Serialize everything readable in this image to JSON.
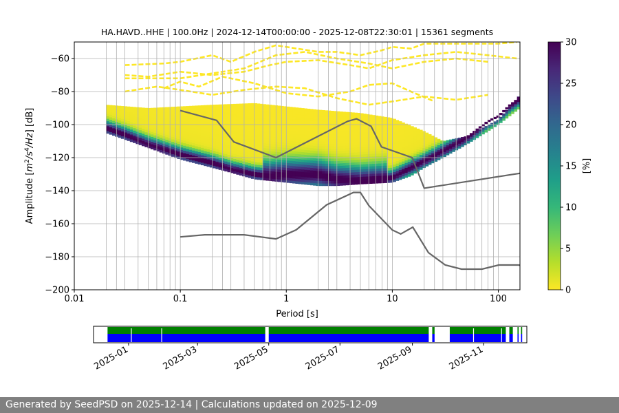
{
  "chart_data": [
    {
      "type": "heatmap",
      "title": "HA.HAVD..HHE | 100.0Hz | 2024-12-14T00:00:00 - 2025-12-08T22:30:01 | 15361 segments",
      "xlabel": "Period [s]",
      "ylabel_parts": [
        "Amplitude [",
        "m",
        "2",
        "/",
        "s",
        "4",
        "/",
        "Hz",
        "] [dB]"
      ],
      "x_scale": "log",
      "xlim": [
        0.01,
        160
      ],
      "ylim": [
        -200,
        -50
      ],
      "grid": true,
      "x_ticks": [
        {
          "value": 0.01,
          "label": "0.01"
        },
        {
          "value": 0.1,
          "label": "0.1"
        },
        {
          "value": 1,
          "label": "1"
        },
        {
          "value": 10,
          "label": "10"
        },
        {
          "value": 100,
          "label": "100"
        }
      ],
      "y_ticks": [
        {
          "value": -60,
          "label": "−60"
        },
        {
          "value": -80,
          "label": "−80"
        },
        {
          "value": -100,
          "label": "−100"
        },
        {
          "value": -120,
          "label": "−120"
        },
        {
          "value": -140,
          "label": "−140"
        },
        {
          "value": -160,
          "label": "−160"
        },
        {
          "value": -180,
          "label": "−180"
        },
        {
          "value": -200,
          "label": "−200"
        }
      ],
      "period_gridlines": [
        0.02,
        0.025,
        0.03,
        0.04,
        0.05,
        0.06,
        0.07,
        0.08,
        0.09,
        0.1,
        0.2,
        0.25,
        0.3,
        0.4,
        0.5,
        0.6,
        0.7,
        0.8,
        0.9,
        1,
        2,
        2.5,
        3,
        4,
        5,
        6,
        7,
        8,
        9,
        10,
        20,
        25,
        30,
        40,
        50,
        60,
        70,
        80,
        90,
        100
      ],
      "mode_curve": [
        [
          0.02,
          -102
        ],
        [
          0.03,
          -106
        ],
        [
          0.05,
          -112
        ],
        [
          0.1,
          -118
        ],
        [
          0.2,
          -123
        ],
        [
          0.3,
          -127
        ],
        [
          0.5,
          -130
        ],
        [
          0.7,
          -131
        ],
        [
          1,
          -130
        ],
        [
          2,
          -130
        ],
        [
          3,
          -133
        ],
        [
          5,
          -134
        ],
        [
          8,
          -133
        ],
        [
          10,
          -132
        ],
        [
          15,
          -126
        ],
        [
          20,
          -122
        ],
        [
          30,
          -116
        ],
        [
          50,
          -108
        ],
        [
          80,
          -98
        ],
        [
          100,
          -95
        ],
        [
          130,
          -88
        ],
        [
          160,
          -84
        ]
      ],
      "density_band": {
        "lower": [
          [
            0.02,
            -105
          ],
          [
            0.05,
            -114
          ],
          [
            0.1,
            -121
          ],
          [
            0.2,
            -126
          ],
          [
            0.3,
            -129
          ],
          [
            0.5,
            -133
          ],
          [
            1,
            -135
          ],
          [
            2,
            -137
          ],
          [
            3,
            -137
          ],
          [
            5,
            -136
          ],
          [
            10,
            -135
          ],
          [
            15,
            -131
          ],
          [
            20,
            -126
          ],
          [
            30,
            -120
          ],
          [
            50,
            -112
          ],
          [
            100,
            -100
          ],
          [
            160,
            -90
          ]
        ],
        "upper": [
          [
            0.02,
            -88
          ],
          [
            0.05,
            -90
          ],
          [
            0.1,
            -89
          ],
          [
            0.2,
            -88
          ],
          [
            0.5,
            -87
          ],
          [
            1,
            -89
          ],
          [
            2,
            -91
          ],
          [
            5,
            -93
          ],
          [
            10,
            -96
          ],
          [
            20,
            -104
          ],
          [
            30,
            -110
          ],
          [
            50,
            -107
          ],
          [
            100,
            -97
          ],
          [
            160,
            -82
          ]
        ]
      },
      "outlier_traces": [
        [
          [
            0.03,
            -64
          ],
          [
            0.07,
            -63
          ],
          [
            0.1,
            -62
          ],
          [
            0.2,
            -58
          ],
          [
            0.3,
            -62
          ],
          [
            0.5,
            -56
          ],
          [
            0.8,
            -52
          ],
          [
            1,
            -53
          ],
          [
            2,
            -56
          ],
          [
            3,
            -56
          ],
          [
            5,
            -58
          ],
          [
            8,
            -55
          ],
          [
            10,
            -53
          ],
          [
            15,
            -54
          ],
          [
            20,
            -51
          ],
          [
            40,
            -51
          ],
          [
            100,
            -51
          ],
          [
            150,
            -50
          ]
        ],
        [
          [
            0.03,
            -70
          ],
          [
            0.05,
            -71
          ],
          [
            0.1,
            -68
          ],
          [
            0.2,
            -70
          ],
          [
            0.4,
            -68
          ],
          [
            0.7,
            -64
          ],
          [
            1,
            -62
          ],
          [
            2,
            -61
          ],
          [
            4,
            -64
          ],
          [
            6,
            -66
          ],
          [
            10,
            -61
          ],
          [
            20,
            -58
          ],
          [
            40,
            -56
          ],
          [
            80,
            -58
          ],
          [
            150,
            -60
          ]
        ],
        [
          [
            0.03,
            -72
          ],
          [
            0.05,
            -72
          ],
          [
            0.1,
            -72
          ],
          [
            0.2,
            -69
          ],
          [
            0.4,
            -66
          ],
          [
            0.8,
            -58
          ],
          [
            1.5,
            -56
          ],
          [
            3,
            -60
          ],
          [
            6,
            -63
          ],
          [
            10,
            -66
          ],
          [
            20,
            -62
          ],
          [
            40,
            -60
          ],
          [
            80,
            -62
          ]
        ],
        [
          [
            0.07,
            -78
          ],
          [
            0.1,
            -74
          ],
          [
            0.15,
            -77
          ],
          [
            0.25,
            -71
          ],
          [
            0.5,
            -75
          ],
          [
            1,
            -81
          ],
          [
            2,
            -83
          ],
          [
            4,
            -80
          ],
          [
            6,
            -76
          ],
          [
            10,
            -75
          ],
          [
            15,
            -80
          ],
          [
            25,
            -86
          ]
        ],
        [
          [
            0.03,
            -80
          ],
          [
            0.06,
            -77
          ],
          [
            0.1,
            -79
          ],
          [
            0.2,
            -82
          ],
          [
            0.4,
            -79
          ],
          [
            0.8,
            -77
          ],
          [
            1.5,
            -78
          ],
          [
            3,
            -84
          ],
          [
            6,
            -88
          ],
          [
            10,
            -86
          ],
          [
            20,
            -83
          ],
          [
            40,
            -85
          ],
          [
            80,
            -82
          ]
        ]
      ],
      "nhnm": [
        [
          0.1,
          -91.5
        ],
        [
          0.22,
          -97.4
        ],
        [
          0.32,
          -110.5
        ],
        [
          0.8,
          -120
        ],
        [
          3.8,
          -98
        ],
        [
          4.6,
          -96.5
        ],
        [
          6.3,
          -101
        ],
        [
          7.9,
          -113.5
        ],
        [
          15.4,
          -120
        ],
        [
          20,
          -138.5
        ],
        [
          354.8,
          -126
        ]
      ],
      "nlnm": [
        [
          0.1,
          -168
        ],
        [
          0.17,
          -166.7
        ],
        [
          0.4,
          -166.7
        ],
        [
          0.8,
          -169.2
        ],
        [
          1.24,
          -163.7
        ],
        [
          2.4,
          -148.6
        ],
        [
          4.3,
          -141.1
        ],
        [
          5.0,
          -141.1
        ],
        [
          6.0,
          -149.0
        ],
        [
          10.0,
          -163.8
        ],
        [
          12.0,
          -166.2
        ],
        [
          15.6,
          -162.1
        ],
        [
          21.9,
          -177.5
        ],
        [
          31.6,
          -185.0
        ],
        [
          45.0,
          -187.5
        ],
        [
          70.0,
          -187.5
        ],
        [
          101.0,
          -185.0
        ],
        [
          154.0,
          -185.0
        ],
        [
          328.0,
          -187.5
        ]
      ],
      "colorbar": {
        "label": "[%]",
        "vmin": 0,
        "vmax": 30,
        "ticks": [
          {
            "value": 0,
            "label": "0"
          },
          {
            "value": 5,
            "label": "5"
          },
          {
            "value": 10,
            "label": "10"
          },
          {
            "value": 15,
            "label": "15"
          },
          {
            "value": 20,
            "label": "20"
          },
          {
            "value": 25,
            "label": "25"
          },
          {
            "value": 30,
            "label": "30"
          }
        ],
        "colormap": [
          "#fde725",
          "#b5de2b",
          "#6ece58",
          "#35b779",
          "#1f9e89",
          "#26828e",
          "#31688e",
          "#3e4989",
          "#482878",
          "#440154"
        ]
      }
    },
    {
      "type": "timeline",
      "tick_labels": [
        {
          "date": "2025-01-01",
          "label": "2025-01"
        },
        {
          "date": "2025-03-01",
          "label": "2025-03"
        },
        {
          "date": "2025-05-01",
          "label": "2025-05"
        },
        {
          "date": "2025-07-01",
          "label": "2025-07"
        },
        {
          "date": "2025-09-01",
          "label": "2025-09"
        },
        {
          "date": "2025-11-01",
          "label": "2025-11"
        }
      ],
      "xlim": [
        "2024-12-02",
        "2025-12-08"
      ],
      "data_coverage": [
        [
          "2024-12-14",
          "2025-04-28"
        ],
        [
          "2025-05-01",
          "2025-09-15"
        ],
        [
          "2025-09-18",
          "2025-09-20"
        ],
        [
          "2025-10-03",
          "2025-11-20"
        ],
        [
          "2025-11-23",
          "2025-11-26"
        ],
        [
          "2025-11-30",
          "2025-12-01"
        ],
        [
          "2025-12-03",
          "2025-12-04"
        ]
      ],
      "psd_coverage": [
        [
          "2024-12-14",
          "2025-04-28"
        ],
        [
          "2025-05-01",
          "2025-09-15"
        ],
        [
          "2025-09-18",
          "2025-09-20"
        ],
        [
          "2025-10-03",
          "2025-11-20"
        ],
        [
          "2025-11-23",
          "2025-11-26"
        ],
        [
          "2025-11-30",
          "2025-12-01"
        ],
        [
          "2025-12-03",
          "2025-12-04"
        ]
      ],
      "psd_gaps": [
        "2025-01-03",
        "2025-01-29",
        "2025-09-17",
        "2025-10-23",
        "2025-11-16"
      ],
      "colors": {
        "data": "#008000",
        "psd": "#0000ff"
      }
    }
  ],
  "footer": {
    "text": "Generated by SeedPSD on 2025-12-14 | Calculations updated on 2025-12-09"
  },
  "colors": {
    "nm_curves": "#666666",
    "grid": "#b0b0b0",
    "footer_bg": "#808080"
  }
}
